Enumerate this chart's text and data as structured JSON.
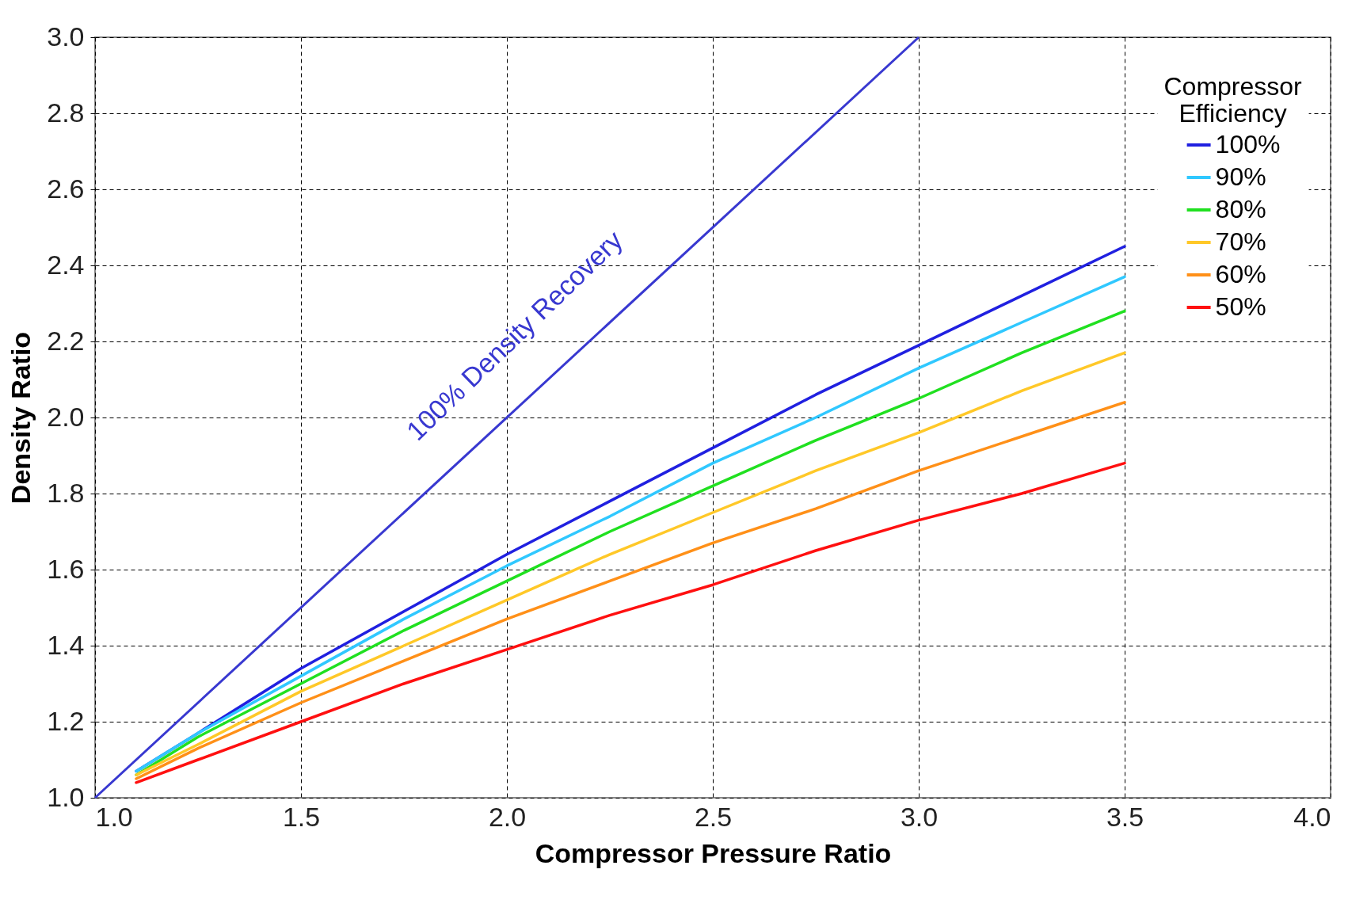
{
  "chart_data": {
    "type": "line",
    "xlabel": "Compressor Pressure Ratio",
    "ylabel": "Density Ratio",
    "legend_title": "Compressor Efficiency",
    "x": [
      1.1,
      1.25,
      1.5,
      1.75,
      2,
      2.25,
      2.5,
      2.75,
      3,
      3.25,
      3.5
    ],
    "series": [
      {
        "name": "100%",
        "color": "#2020e0",
        "values": [
          1.07,
          1.17,
          1.34,
          1.49,
          1.64,
          1.78,
          1.92,
          2.06,
          2.19,
          2.32,
          2.45
        ]
      },
      {
        "name": "90%",
        "color": "#30c8ff",
        "values": [
          1.07,
          1.17,
          1.32,
          1.47,
          1.61,
          1.74,
          1.88,
          2.0,
          2.13,
          2.25,
          2.37
        ]
      },
      {
        "name": "80%",
        "color": "#20e020",
        "values": [
          1.06,
          1.16,
          1.3,
          1.44,
          1.57,
          1.7,
          1.82,
          1.94,
          2.05,
          2.17,
          2.28
        ]
      },
      {
        "name": "70%",
        "color": "#ffc828",
        "values": [
          1.06,
          1.14,
          1.28,
          1.4,
          1.52,
          1.64,
          1.75,
          1.86,
          1.96,
          2.07,
          2.17
        ]
      },
      {
        "name": "60%",
        "color": "#ff9018",
        "values": [
          1.05,
          1.13,
          1.25,
          1.36,
          1.47,
          1.57,
          1.67,
          1.76,
          1.86,
          1.95,
          2.04
        ]
      },
      {
        "name": "50%",
        "color": "#ff1010",
        "values": [
          1.04,
          1.1,
          1.2,
          1.3,
          1.39,
          1.48,
          1.56,
          1.65,
          1.73,
          1.8,
          1.88
        ]
      },
      {
        "color": "#3838d0",
        "x": [
          1,
          3
        ],
        "values": [
          1,
          3
        ]
      }
    ],
    "annotations": [
      "100% Density Recovery"
    ],
    "xlim": [
      1,
      4
    ],
    "xticks": [
      {
        "value": 1,
        "label": "1.0"
      },
      {
        "value": 1.5,
        "label": "1.5"
      },
      {
        "value": 2,
        "label": "2.0"
      },
      {
        "value": 2.5,
        "label": "2.5"
      },
      {
        "value": 3,
        "label": "3.0"
      },
      {
        "value": 3.5,
        "label": "3.5"
      },
      {
        "value": 4,
        "label": "4.0"
      }
    ],
    "ylim": [
      1,
      3
    ],
    "yticks": [
      {
        "value": 1,
        "label": "1.0"
      },
      1.2,
      1.4,
      1.6,
      1.8,
      {
        "value": 2,
        "label": "2.0"
      },
      2.2,
      2.4,
      2.6,
      2.8,
      {
        "value": 3,
        "label": "3.0"
      }
    ],
    "grid": true,
    "legend": "top right",
    "marker": "none",
    "line_style": "solid"
  }
}
